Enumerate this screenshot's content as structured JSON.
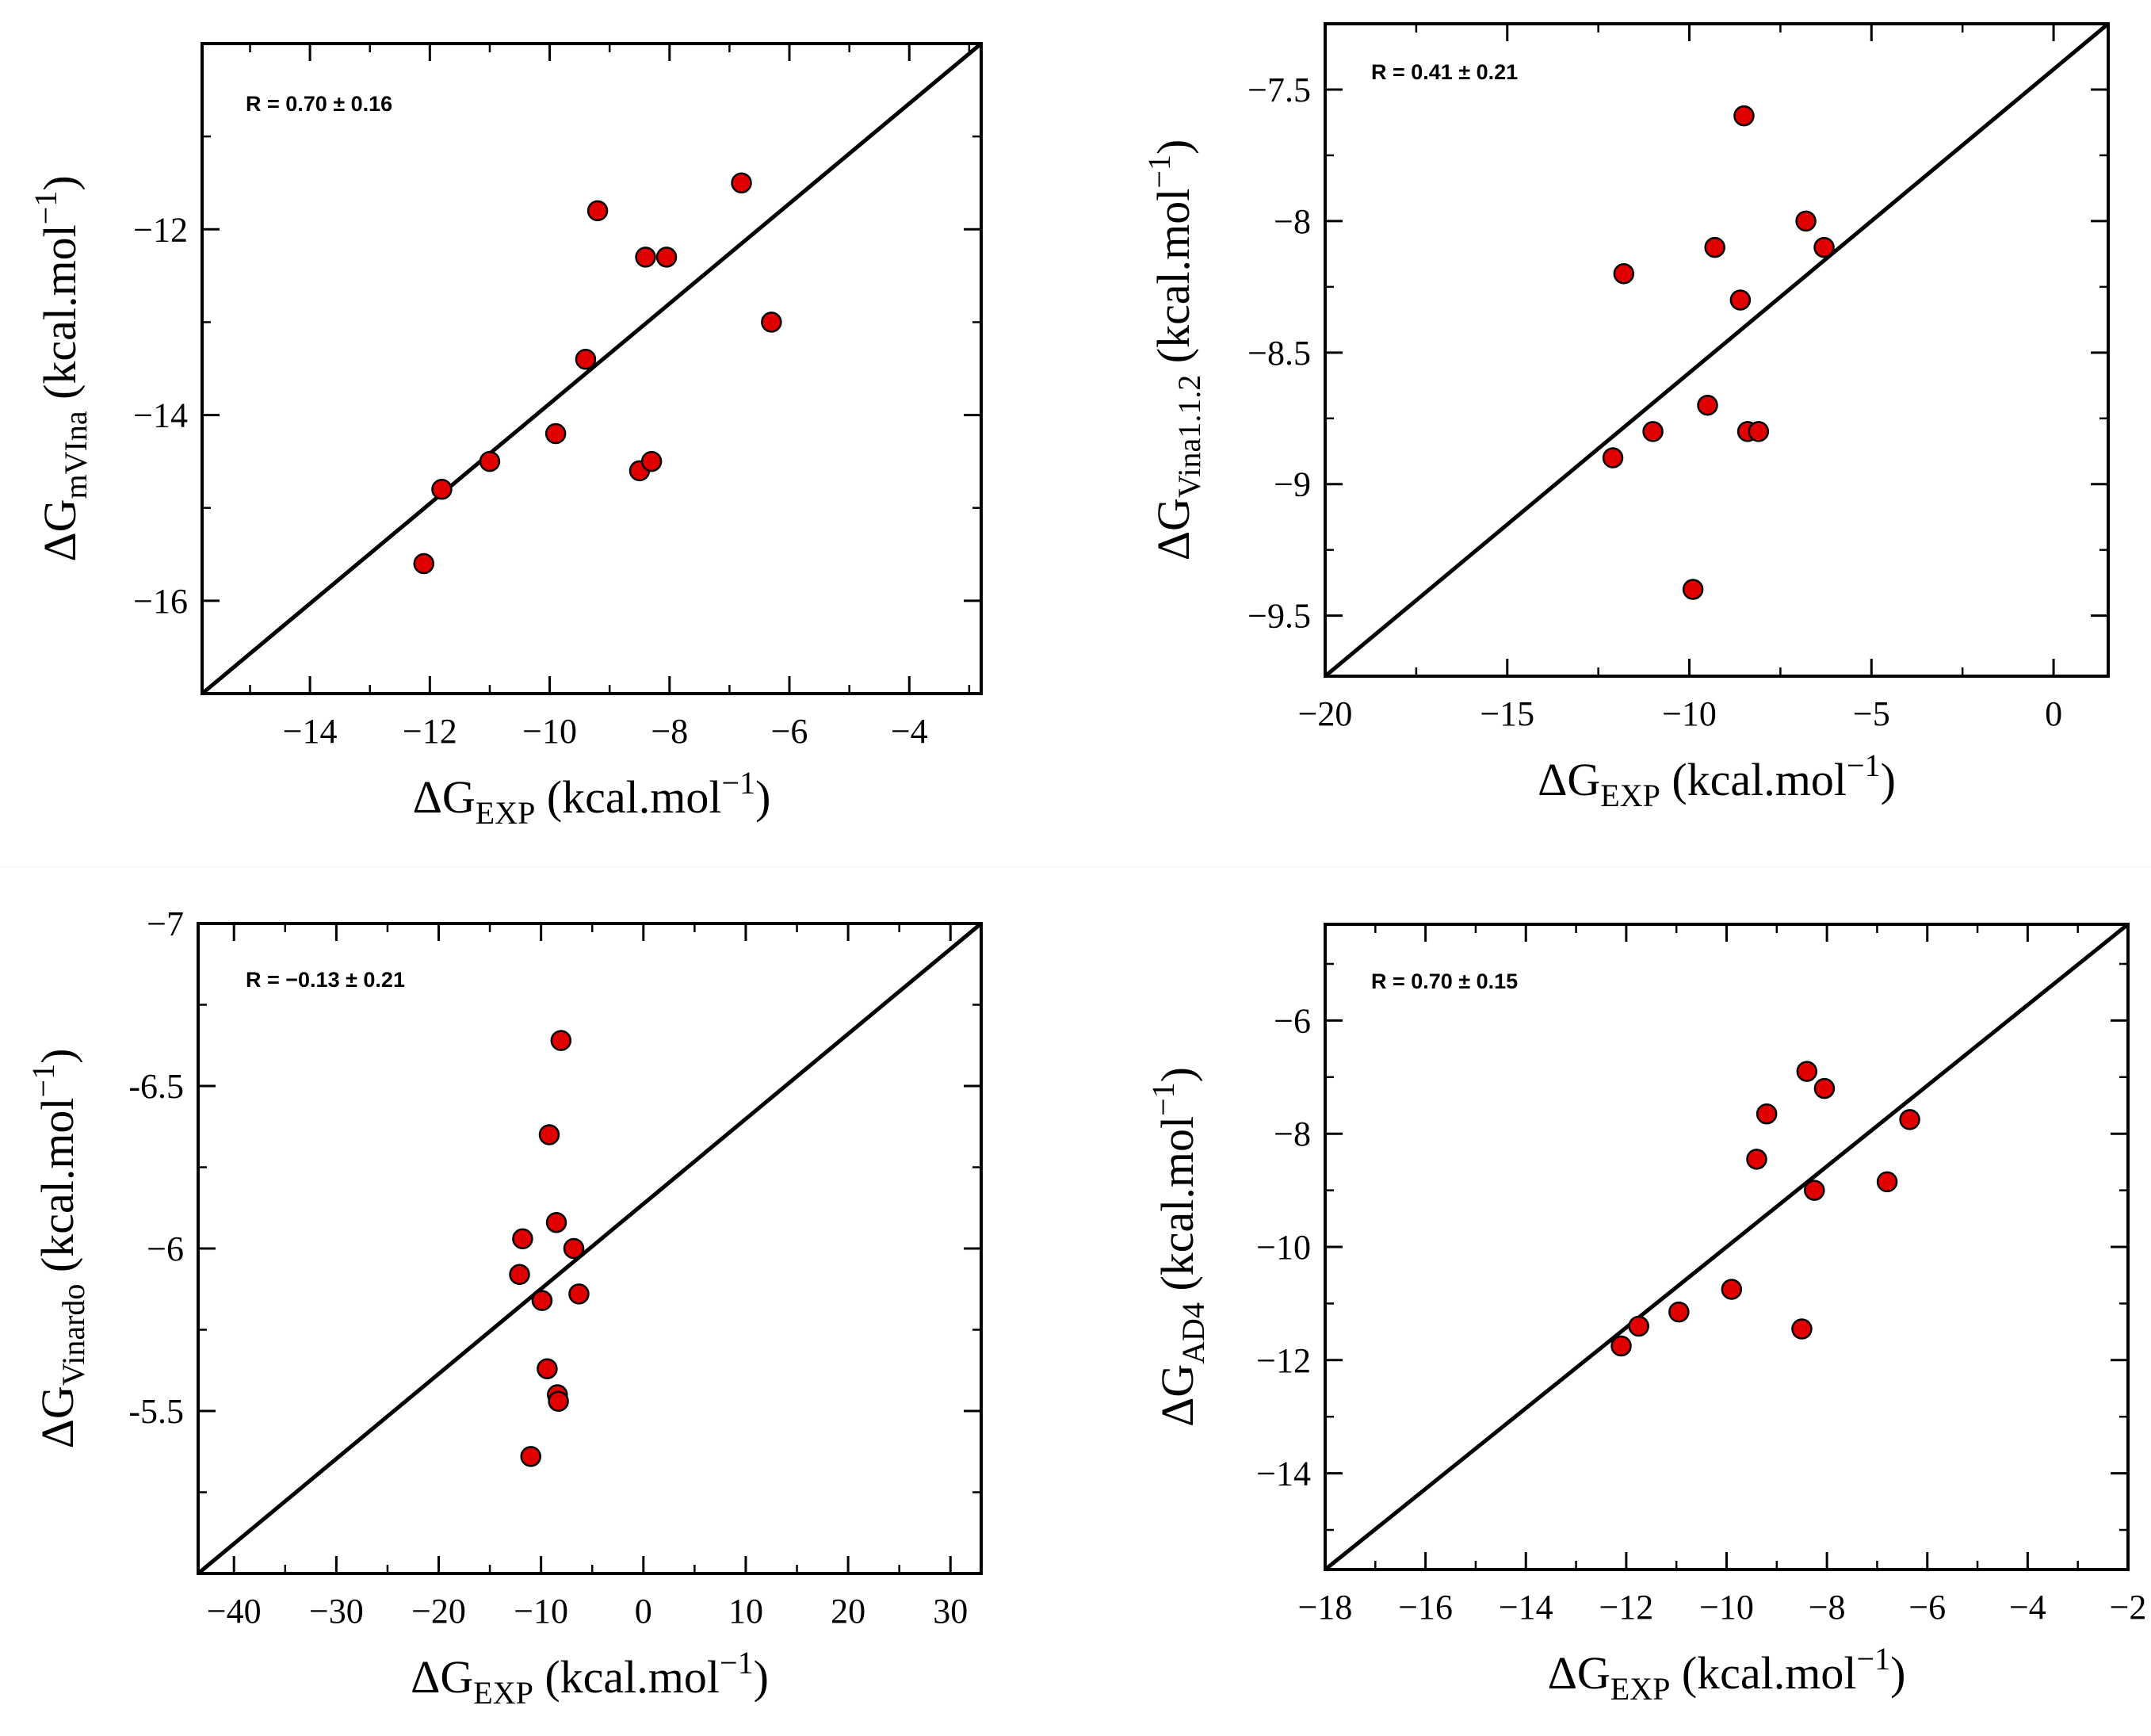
{
  "chart_data": [
    {
      "type": "scatter",
      "title": "",
      "annotation": "R = 0.70 ± 0.16",
      "xlabel": {
        "base": "ΔG",
        "sub": "EXP",
        "unit": "(kcal.mol",
        "sup": "−1",
        "close": ")"
      },
      "ylabel": {
        "base": "ΔG",
        "sub": "mVIna",
        "unit": "(kcal.mol",
        "sup": "−1",
        "close": ")"
      },
      "xlim": [
        -15.8,
        -2.8
      ],
      "ylim": [
        -17,
        -10
      ],
      "xticks": [
        -14,
        -12,
        -10,
        -8,
        -6,
        -4
      ],
      "xtick_labels": [
        "−14",
        "−12",
        "−10",
        "−8",
        "−6",
        "−4"
      ],
      "yticks": [
        -16,
        -14,
        -12
      ],
      "ytick_labels": [
        "−16",
        "−14",
        "−12"
      ],
      "grid": false,
      "marker_color": "#e00000",
      "series": [
        {
          "x": [
            -12.1,
            -11.8,
            -11.0,
            -9.9,
            -9.4,
            -9.2,
            -8.5,
            -8.4,
            -8.3,
            -8.05,
            -6.8,
            -6.3
          ],
          "y": [
            -15.6,
            -14.8,
            -14.5,
            -14.2,
            -13.4,
            -11.8,
            -14.6,
            -12.3,
            -14.5,
            -12.3,
            -11.5,
            -13.0
          ]
        }
      ],
      "reference_line": [
        [
          -15.8,
          -17
        ],
        [
          -2.8,
          -10
        ]
      ]
    },
    {
      "type": "scatter",
      "title": "",
      "annotation": "R = 0.41 ± 0.21",
      "xlabel": {
        "base": "ΔG",
        "sub": "EXP",
        "unit": "(kcal.mol",
        "sup": "−1",
        "close": ")"
      },
      "ylabel": {
        "base": "ΔG",
        "sub": "Vina1.1.2",
        "unit": "(kcal.mol",
        "sup": "−1",
        "close": ")"
      },
      "xlim": [
        -20,
        1.5
      ],
      "ylim": [
        -9.73,
        -7.25
      ],
      "xticks": [
        -20,
        -15,
        -10,
        -5,
        0
      ],
      "xtick_labels": [
        "−20",
        "−15",
        "−10",
        "−5",
        "0"
      ],
      "yticks": [
        -9.5,
        -9,
        -8.5,
        -8,
        -7.5
      ],
      "ytick_labels": [
        "−9.5",
        "−9",
        "−8.5",
        "−8",
        "−7.5"
      ],
      "grid": false,
      "marker_color": "#e00000",
      "series": [
        {
          "x": [
            -12.1,
            -11.8,
            -11.0,
            -9.9,
            -9.5,
            -9.3,
            -8.6,
            -8.5,
            -8.4,
            -8.1,
            -6.8,
            -6.3
          ],
          "y": [
            -8.9,
            -8.2,
            -8.8,
            -9.4,
            -8.7,
            -8.1,
            -8.3,
            -7.6,
            -8.8,
            -8.8,
            -8.0,
            -8.1
          ]
        }
      ],
      "reference_line": [
        [
          -20,
          -9.73
        ],
        [
          1.5,
          -7.25
        ]
      ]
    },
    {
      "type": "scatter",
      "title": "",
      "annotation": "R = −0.13 ± 0.21",
      "xlabel": {
        "base": "ΔG",
        "sub": "EXP",
        "unit": "(kcal.mol",
        "sup": "−1",
        "close": ")"
      },
      "ylabel": {
        "base": "ΔG",
        "sub": "Vinardo",
        "unit": "(kcal.mol",
        "sup": "−1",
        "close": ")"
      },
      "xlim": [
        -43.5,
        33
      ],
      "ylim": [
        -5,
        -7
      ],
      "xticks": [
        -40,
        -30,
        -20,
        -10,
        0,
        10,
        20,
        30
      ],
      "xtick_labels": [
        "−40",
        "−30",
        "−20",
        "−10",
        "0",
        "10",
        "20",
        "30"
      ],
      "yticks": [
        -5.5,
        -6,
        -6.5,
        -7
      ],
      "ytick_labels": [
        "-5.5",
        "−6",
        "-6.5",
        "−7"
      ],
      "grid": false,
      "marker_color": "#e00000",
      "series": [
        {
          "x": [
            -12.1,
            -11.8,
            -11.0,
            -9.9,
            -9.4,
            -9.2,
            -8.5,
            -8.4,
            -8.3,
            -8.05,
            -6.8,
            -6.3
          ],
          "y": [
            -5.92,
            -6.03,
            -5.36,
            -5.84,
            -5.63,
            -6.35,
            -6.08,
            -5.55,
            -5.53,
            -6.64,
            -6.0,
            -5.86
          ]
        }
      ],
      "reference_line": [
        [
          -43.5,
          -5
        ],
        [
          33,
          -7
        ]
      ]
    },
    {
      "type": "scatter",
      "title": "",
      "annotation": "R = 0.70 ± 0.15",
      "xlabel": {
        "base": "ΔG",
        "sub": "EXP",
        "unit": "(kcal.mol",
        "sup": "−1",
        "close": ")"
      },
      "ylabel": {
        "base": "ΔG",
        "sub": "AD4",
        "unit": "(kcal.mol",
        "sup": "−1",
        "close": ")"
      },
      "xlim": [
        -18,
        -2
      ],
      "ylim": [
        -15.7,
        -4.3
      ],
      "xticks": [
        -18,
        -16,
        -14,
        -12,
        -10,
        -8,
        -6,
        -4,
        -2
      ],
      "xtick_labels": [
        "−18",
        "−16",
        "−14",
        "−12",
        "−10",
        "−8",
        "−6",
        "−4",
        "−2"
      ],
      "yticks": [
        -14,
        -12,
        -10,
        -8,
        -6
      ],
      "ytick_labels": [
        "−14",
        "−12",
        "−10",
        "−8",
        "−6"
      ],
      "grid": false,
      "marker_color": "#e00000",
      "series": [
        {
          "x": [
            -12.1,
            -11.75,
            -10.95,
            -9.9,
            -9.4,
            -9.2,
            -8.5,
            -8.4,
            -8.25,
            -8.05,
            -6.8,
            -6.35
          ],
          "y": [
            -11.75,
            -11.4,
            -11.15,
            -10.75,
            -8.45,
            -7.65,
            -11.45,
            -6.9,
            -9.0,
            -7.2,
            -8.85,
            -7.75
          ]
        }
      ],
      "reference_line": [
        [
          -18,
          -15.7
        ],
        [
          -2,
          -4.3
        ]
      ]
    }
  ]
}
